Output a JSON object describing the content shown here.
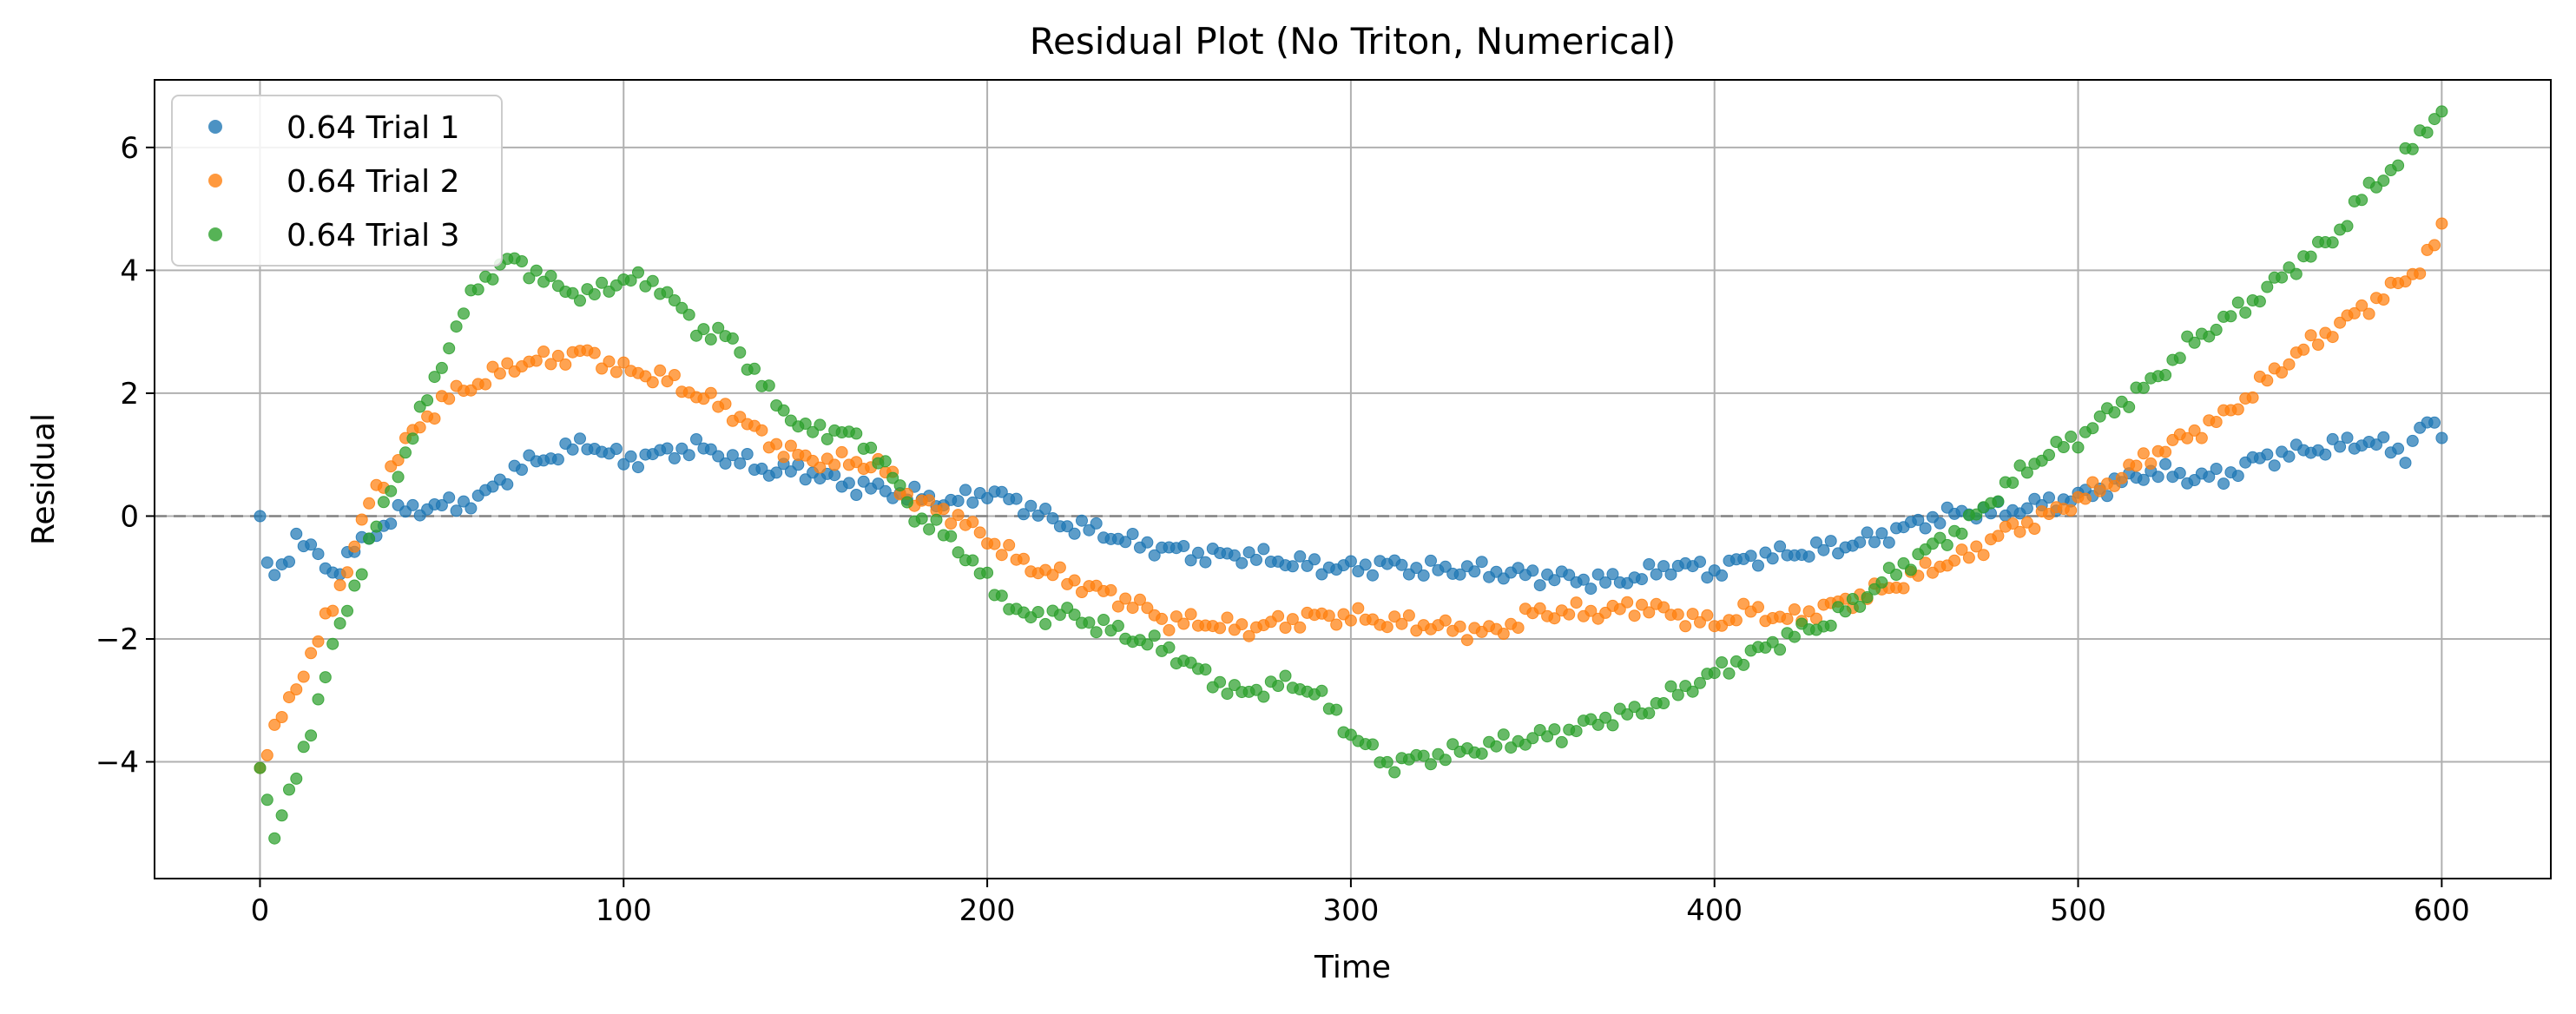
{
  "chart_data": {
    "type": "scatter",
    "title": "Residual Plot (No Triton, Numerical)",
    "xlabel": "Time",
    "ylabel": "Residual",
    "xlim": [
      -29,
      630
    ],
    "ylim": [
      -5.9,
      7.1
    ],
    "xticks": [
      0,
      100,
      200,
      300,
      400,
      500,
      600
    ],
    "xtick_labels": [
      "0",
      "100",
      "200",
      "300",
      "400",
      "500",
      "600"
    ],
    "yticks": [
      -4,
      -2,
      0,
      2,
      4,
      6
    ],
    "ytick_labels": [
      "−4",
      "−2",
      "0",
      "2",
      "4",
      "6"
    ],
    "grid": true,
    "reference_line": {
      "y": 0,
      "style": "dashed",
      "color": "#808080"
    },
    "legend_position": "upper-left",
    "sample_step": 2,
    "series": [
      {
        "name": "0.64 Trial 1",
        "color": "#1f77b4",
        "anchors": [
          [
            0,
            0
          ],
          [
            2,
            -0.85
          ],
          [
            5,
            -1.0
          ],
          [
            10,
            -0.3
          ],
          [
            20,
            -0.9
          ],
          [
            30,
            -0.3
          ],
          [
            40,
            0.15
          ],
          [
            50,
            0.2
          ],
          [
            60,
            0.3
          ],
          [
            70,
            0.8
          ],
          [
            80,
            1.0
          ],
          [
            90,
            1.2
          ],
          [
            100,
            0.9
          ],
          [
            110,
            1.0
          ],
          [
            120,
            1.1
          ],
          [
            130,
            0.9
          ],
          [
            140,
            0.7
          ],
          [
            150,
            0.7
          ],
          [
            160,
            0.5
          ],
          [
            170,
            0.4
          ],
          [
            180,
            0.3
          ],
          [
            190,
            0.2
          ],
          [
            200,
            0.4
          ],
          [
            210,
            0.2
          ],
          [
            220,
            -0.1
          ],
          [
            230,
            -0.2
          ],
          [
            240,
            -0.4
          ],
          [
            250,
            -0.5
          ],
          [
            260,
            -0.6
          ],
          [
            270,
            -0.6
          ],
          [
            280,
            -0.7
          ],
          [
            290,
            -0.8
          ],
          [
            300,
            -0.85
          ],
          [
            310,
            -0.8
          ],
          [
            320,
            -0.9
          ],
          [
            330,
            -0.9
          ],
          [
            340,
            -0.95
          ],
          [
            350,
            -1.0
          ],
          [
            360,
            -1.05
          ],
          [
            370,
            -1.1
          ],
          [
            380,
            -1.0
          ],
          [
            390,
            -0.8
          ],
          [
            400,
            -0.9
          ],
          [
            410,
            -0.65
          ],
          [
            420,
            -0.6
          ],
          [
            430,
            -0.5
          ],
          [
            440,
            -0.4
          ],
          [
            450,
            -0.2
          ],
          [
            460,
            0
          ],
          [
            470,
            0.1
          ],
          [
            480,
            0.1
          ],
          [
            490,
            0.2
          ],
          [
            500,
            0.3
          ],
          [
            510,
            0.5
          ],
          [
            520,
            0.7
          ],
          [
            530,
            0.6
          ],
          [
            540,
            0.6
          ],
          [
            550,
            0.9
          ],
          [
            560,
            1.0
          ],
          [
            570,
            1.1
          ],
          [
            580,
            1.2
          ],
          [
            590,
            1.0
          ],
          [
            595,
            1.5
          ],
          [
            600,
            1.4
          ]
        ]
      },
      {
        "name": "0.64 Trial 2",
        "color": "#ff7f0e",
        "anchors": [
          [
            0,
            -4.1
          ],
          [
            2,
            -3.8
          ],
          [
            10,
            -2.8
          ],
          [
            20,
            -1.5
          ],
          [
            30,
            0.2
          ],
          [
            40,
            1.2
          ],
          [
            50,
            1.9
          ],
          [
            60,
            2.2
          ],
          [
            70,
            2.5
          ],
          [
            80,
            2.6
          ],
          [
            90,
            2.7
          ],
          [
            100,
            2.4
          ],
          [
            110,
            2.3
          ],
          [
            120,
            2.0
          ],
          [
            130,
            1.7
          ],
          [
            140,
            1.2
          ],
          [
            150,
            0.9
          ],
          [
            160,
            0.85
          ],
          [
            170,
            0.8
          ],
          [
            180,
            0.2
          ],
          [
            190,
            0
          ],
          [
            200,
            -0.4
          ],
          [
            210,
            -0.8
          ],
          [
            220,
            -1.0
          ],
          [
            230,
            -1.2
          ],
          [
            240,
            -1.4
          ],
          [
            250,
            -1.7
          ],
          [
            260,
            -1.7
          ],
          [
            270,
            -1.8
          ],
          [
            280,
            -1.7
          ],
          [
            290,
            -1.6
          ],
          [
            300,
            -1.6
          ],
          [
            310,
            -1.7
          ],
          [
            320,
            -1.75
          ],
          [
            330,
            -1.85
          ],
          [
            340,
            -1.9
          ],
          [
            350,
            -1.6
          ],
          [
            360,
            -1.6
          ],
          [
            370,
            -1.6
          ],
          [
            380,
            -1.5
          ],
          [
            390,
            -1.65
          ],
          [
            400,
            -1.8
          ],
          [
            410,
            -1.55
          ],
          [
            420,
            -1.7
          ],
          [
            430,
            -1.5
          ],
          [
            440,
            -1.3
          ],
          [
            450,
            -1.1
          ],
          [
            460,
            -0.8
          ],
          [
            470,
            -0.6
          ],
          [
            480,
            -0.2
          ],
          [
            490,
            0
          ],
          [
            500,
            0.3
          ],
          [
            510,
            0.6
          ],
          [
            520,
            1.0
          ],
          [
            530,
            1.3
          ],
          [
            540,
            1.6
          ],
          [
            550,
            2.1
          ],
          [
            560,
            2.6
          ],
          [
            570,
            3.0
          ],
          [
            580,
            3.4
          ],
          [
            590,
            3.8
          ],
          [
            595,
            4.1
          ],
          [
            600,
            4.6
          ]
        ]
      },
      {
        "name": "0.64 Trial 3",
        "color": "#2ca02c",
        "anchors": [
          [
            0,
            -4.1
          ],
          [
            4,
            -5.2
          ],
          [
            10,
            -4.3
          ],
          [
            20,
            -2.2
          ],
          [
            30,
            -0.5
          ],
          [
            40,
            1.0
          ],
          [
            50,
            2.5
          ],
          [
            60,
            3.8
          ],
          [
            70,
            4.2
          ],
          [
            80,
            3.8
          ],
          [
            90,
            3.6
          ],
          [
            100,
            3.9
          ],
          [
            110,
            3.8
          ],
          [
            120,
            3.1
          ],
          [
            130,
            2.9
          ],
          [
            140,
            2.0
          ],
          [
            150,
            1.4
          ],
          [
            160,
            1.4
          ],
          [
            170,
            1.0
          ],
          [
            180,
            0
          ],
          [
            190,
            -0.4
          ],
          [
            200,
            -1.1
          ],
          [
            210,
            -1.7
          ],
          [
            220,
            -1.6
          ],
          [
            230,
            -1.8
          ],
          [
            240,
            -2.0
          ],
          [
            250,
            -2.2
          ],
          [
            260,
            -2.6
          ],
          [
            270,
            -2.9
          ],
          [
            280,
            -2.7
          ],
          [
            290,
            -2.8
          ],
          [
            300,
            -3.5
          ],
          [
            310,
            -4.0
          ],
          [
            320,
            -3.9
          ],
          [
            330,
            -3.8
          ],
          [
            340,
            -3.7
          ],
          [
            350,
            -3.6
          ],
          [
            360,
            -3.5
          ],
          [
            370,
            -3.3
          ],
          [
            380,
            -3.2
          ],
          [
            390,
            -2.9
          ],
          [
            400,
            -2.6
          ],
          [
            410,
            -2.3
          ],
          [
            420,
            -2.0
          ],
          [
            430,
            -1.8
          ],
          [
            440,
            -1.4
          ],
          [
            450,
            -0.9
          ],
          [
            460,
            -0.5
          ],
          [
            470,
            -0.1
          ],
          [
            480,
            0.5
          ],
          [
            490,
            1.0
          ],
          [
            500,
            1.3
          ],
          [
            510,
            1.8
          ],
          [
            520,
            2.2
          ],
          [
            530,
            2.8
          ],
          [
            540,
            3.2
          ],
          [
            550,
            3.6
          ],
          [
            560,
            4.1
          ],
          [
            570,
            4.5
          ],
          [
            580,
            5.3
          ],
          [
            590,
            5.8
          ],
          [
            595,
            6.3
          ],
          [
            600,
            6.5
          ]
        ]
      }
    ]
  }
}
